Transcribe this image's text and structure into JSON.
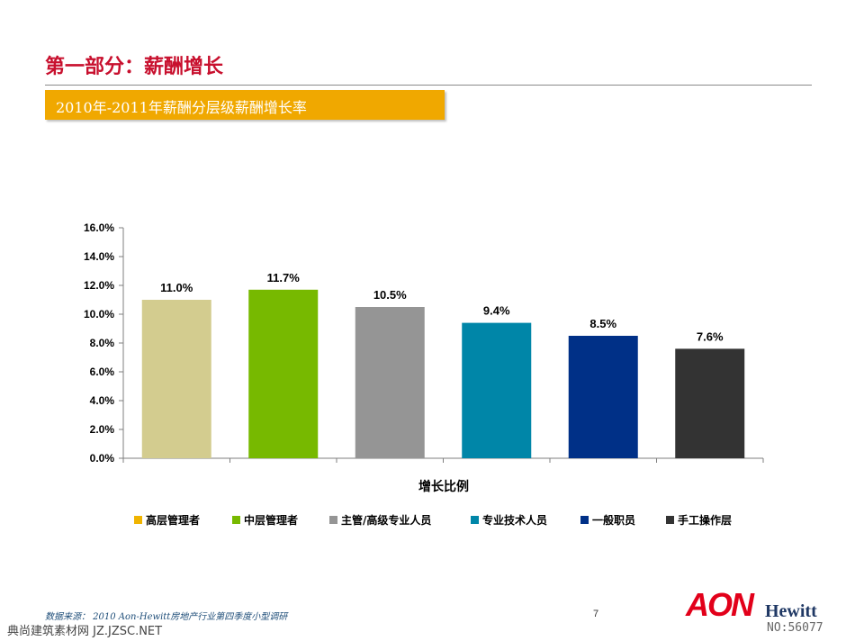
{
  "page": {
    "title": "第一部分：薪酬增长",
    "subtitle": "2010年-2011年薪酬分层级薪酬增长率",
    "source_note": "数据来源： 2010 Aon-Hewitt房地产行业第四季度小型调研",
    "page_number": "7",
    "watermark_left": "典尚建筑素材网 JZ.JZSC.NET",
    "watermark_right": "NO:56077"
  },
  "logo": {
    "primary": "AON",
    "secondary": "Hewitt"
  },
  "colors": {
    "title": "#c8102e",
    "subtitle_bar": "#f0a800",
    "axis": "#7f7f7f"
  },
  "chart_data": {
    "type": "bar",
    "title": "",
    "xlabel": "增长比例",
    "ylabel": "",
    "ylim": [
      0,
      16
    ],
    "yticks": [
      "0.0%",
      "2.0%",
      "4.0%",
      "6.0%",
      "8.0%",
      "10.0%",
      "12.0%",
      "14.0%",
      "16.0%"
    ],
    "grid": false,
    "legend_position": "bottom",
    "categories": [
      "高层管理者",
      "中层管理者",
      "主管/高级专业人员",
      "专业技术人员",
      "一般职员",
      "手工操作层"
    ],
    "values": [
      11.0,
      11.7,
      10.5,
      9.4,
      8.5,
      7.6
    ],
    "data_labels": [
      "11.0%",
      "11.7%",
      "10.5%",
      "9.4%",
      "8.5%",
      "7.6%"
    ],
    "colors": [
      "#d3cc8f",
      "#77b900",
      "#959595",
      "#0086a8",
      "#003087",
      "#333333"
    ],
    "legend_colors": [
      "#f0b400",
      "#77b900",
      "#959595",
      "#0086a8",
      "#003087",
      "#333333"
    ]
  }
}
